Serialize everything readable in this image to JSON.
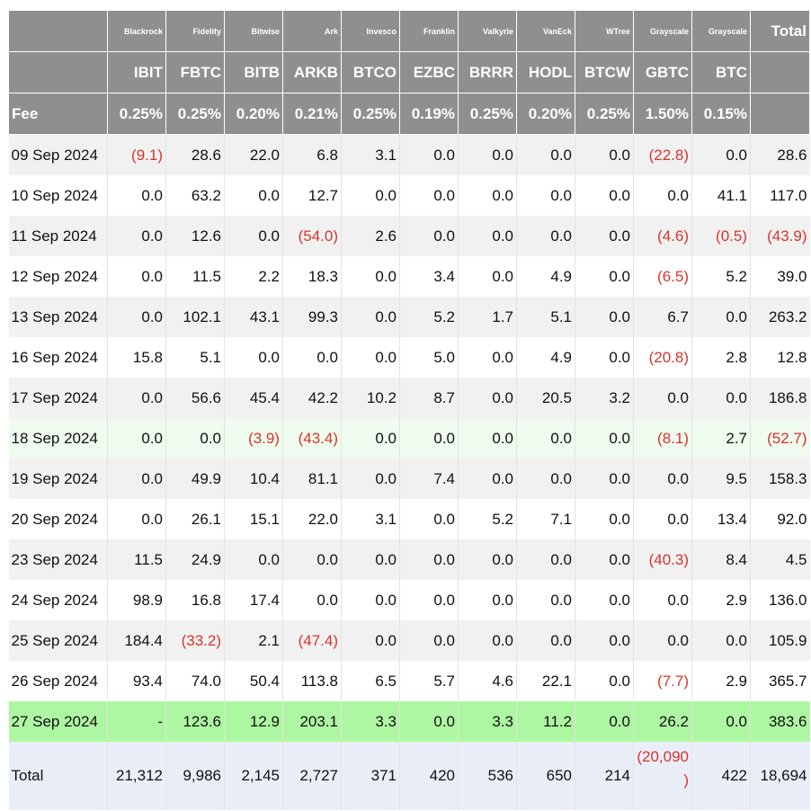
{
  "issuers": [
    "Blackrock",
    "Fidelity",
    "Bitwise",
    "Ark",
    "Invesco",
    "Franklin",
    "Valkyrie",
    "VanEck",
    "WTree",
    "Grayscale",
    "Grayscale"
  ],
  "tickers": [
    "IBIT",
    "FBTC",
    "BITB",
    "ARKB",
    "BTCO",
    "EZBC",
    "BRRR",
    "HODL",
    "BTCW",
    "GBTC",
    "BTC"
  ],
  "fee_label": "Fee",
  "fees": [
    "0.25%",
    "0.25%",
    "0.20%",
    "0.21%",
    "0.25%",
    "0.19%",
    "0.25%",
    "0.20%",
    "0.25%",
    "1.50%",
    "0.15%"
  ],
  "total_header": "Total",
  "rows": [
    {
      "date": "09 Sep 2024",
      "cells": [
        "(9.1)",
        "28.6",
        "22.0",
        "6.8",
        "3.1",
        "0.0",
        "0.0",
        "0.0",
        "0.0",
        "(22.8)",
        "0.0",
        "28.6"
      ]
    },
    {
      "date": "10 Sep 2024",
      "cells": [
        "0.0",
        "63.2",
        "0.0",
        "12.7",
        "0.0",
        "0.0",
        "0.0",
        "0.0",
        "0.0",
        "0.0",
        "41.1",
        "117.0"
      ]
    },
    {
      "date": "11 Sep 2024",
      "cells": [
        "0.0",
        "12.6",
        "0.0",
        "(54.0)",
        "2.6",
        "0.0",
        "0.0",
        "0.0",
        "0.0",
        "(4.6)",
        "(0.5)",
        "(43.9)"
      ]
    },
    {
      "date": "12 Sep 2024",
      "cells": [
        "0.0",
        "11.5",
        "2.2",
        "18.3",
        "0.0",
        "3.4",
        "0.0",
        "4.9",
        "0.0",
        "(6.5)",
        "5.2",
        "39.0"
      ]
    },
    {
      "date": "13 Sep 2024",
      "cells": [
        "0.0",
        "102.1",
        "43.1",
        "99.3",
        "0.0",
        "5.2",
        "1.7",
        "5.1",
        "0.0",
        "6.7",
        "0.0",
        "263.2"
      ]
    },
    {
      "date": "16 Sep 2024",
      "cells": [
        "15.8",
        "5.1",
        "0.0",
        "0.0",
        "0.0",
        "5.0",
        "0.0",
        "4.9",
        "0.0",
        "(20.8)",
        "2.8",
        "12.8"
      ]
    },
    {
      "date": "17 Sep 2024",
      "cells": [
        "0.0",
        "56.6",
        "45.4",
        "42.2",
        "10.2",
        "8.7",
        "0.0",
        "20.5",
        "3.2",
        "0.0",
        "0.0",
        "186.8"
      ]
    },
    {
      "date": "18 Sep 2024",
      "cells": [
        "0.0",
        "0.0",
        "(3.9)",
        "(43.4)",
        "0.0",
        "0.0",
        "0.0",
        "0.0",
        "0.0",
        "(8.1)",
        "2.7",
        "(52.7)"
      ]
    },
    {
      "date": "19 Sep 2024",
      "cells": [
        "0.0",
        "49.9",
        "10.4",
        "81.1",
        "0.0",
        "7.4",
        "0.0",
        "0.0",
        "0.0",
        "0.0",
        "9.5",
        "158.3"
      ]
    },
    {
      "date": "20 Sep 2024",
      "cells": [
        "0.0",
        "26.1",
        "15.1",
        "22.0",
        "3.1",
        "0.0",
        "5.2",
        "7.1",
        "0.0",
        "0.0",
        "13.4",
        "92.0"
      ]
    },
    {
      "date": "23 Sep 2024",
      "cells": [
        "11.5",
        "24.9",
        "0.0",
        "0.0",
        "0.0",
        "0.0",
        "0.0",
        "0.0",
        "0.0",
        "(40.3)",
        "8.4",
        "4.5"
      ]
    },
    {
      "date": "24 Sep 2024",
      "cells": [
        "98.9",
        "16.8",
        "17.4",
        "0.0",
        "0.0",
        "0.0",
        "0.0",
        "0.0",
        "0.0",
        "0.0",
        "2.9",
        "136.0"
      ]
    },
    {
      "date": "25 Sep 2024",
      "cells": [
        "184.4",
        "(33.2)",
        "2.1",
        "(47.4)",
        "0.0",
        "0.0",
        "0.0",
        "0.0",
        "0.0",
        "0.0",
        "0.0",
        "105.9"
      ]
    },
    {
      "date": "26 Sep 2024",
      "cells": [
        "93.4",
        "74.0",
        "50.4",
        "113.8",
        "6.5",
        "5.7",
        "4.6",
        "22.1",
        "0.0",
        "(7.7)",
        "2.9",
        "365.7"
      ]
    },
    {
      "date": "27 Sep 2024",
      "cells": [
        "-",
        "123.6",
        "12.9",
        "203.1",
        "3.3",
        "0.0",
        "3.3",
        "11.2",
        "0.0",
        "26.2",
        "0.0",
        "383.6"
      ]
    }
  ],
  "total_row": {
    "label": "Total",
    "cells": [
      "21,312",
      "9,986",
      "2,145",
      "2,727",
      "371",
      "420",
      "536",
      "650",
      "214",
      "(20,090\n)",
      "422",
      "18,694"
    ]
  },
  "colors": {
    "header_bg": "#8f8f8f",
    "row_alt": "#f1f1f1",
    "highlight_light": "#eefbee",
    "highlight_strong": "#aef7a2",
    "total_bg": "#e9eef8",
    "negative": "#d9342b"
  }
}
